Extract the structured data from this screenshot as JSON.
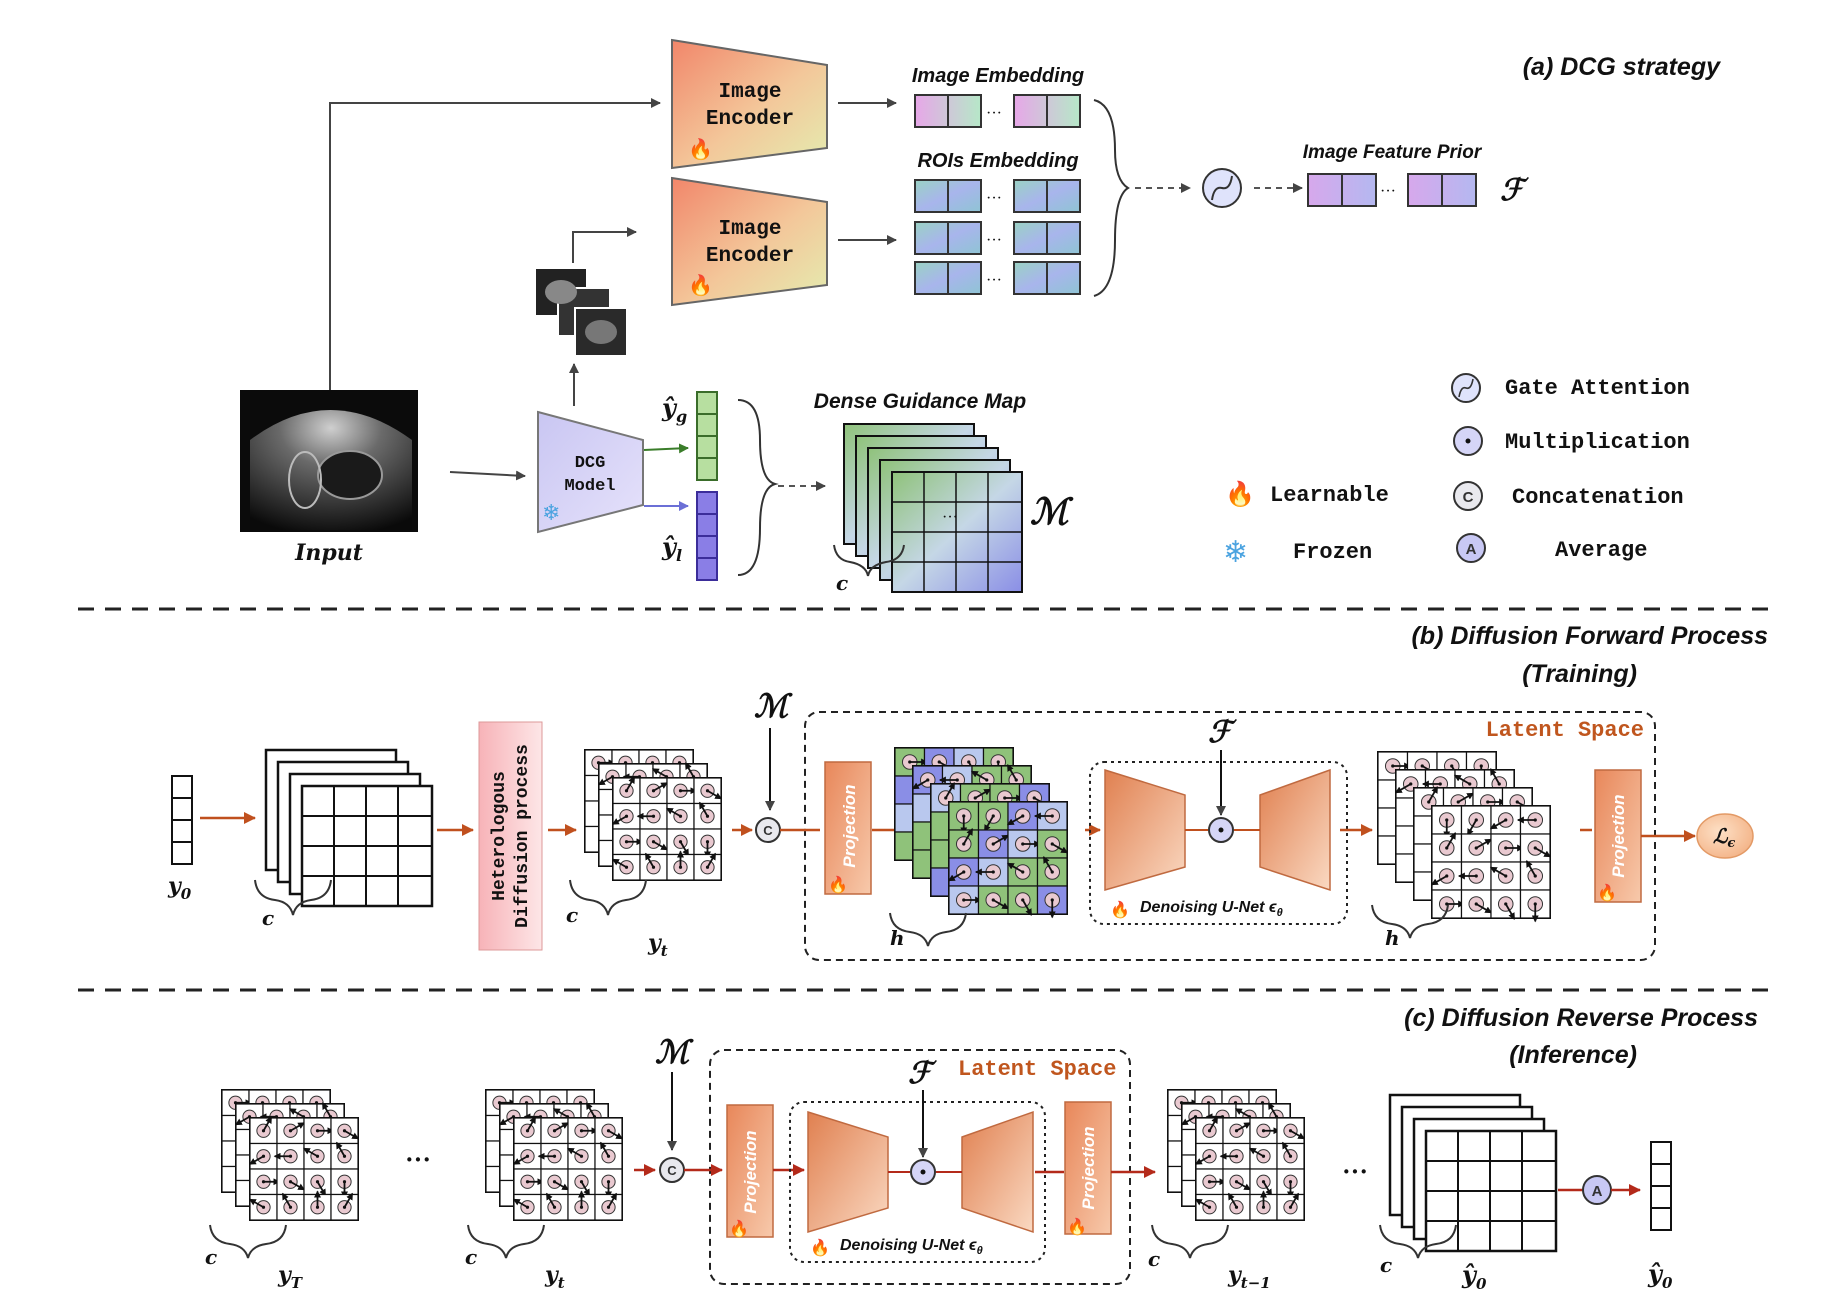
{
  "sections": {
    "a_title": "(a) DCG strategy",
    "b_title_1": "(b) Diffusion Forward Process",
    "b_title_2": "(Training)",
    "c_title_1": "(c) Diffusion Reverse Process",
    "c_title_2": "(Inference)"
  },
  "dcg": {
    "encoder_top": {
      "line1": "Image",
      "line2": "Encoder"
    },
    "encoder_mid": {
      "line1": "Image",
      "line2": "Encoder"
    },
    "dcg_model": {
      "line1": "DCG",
      "line2": "Model"
    },
    "input_label": "Input",
    "image_embedding": "Image Embedding",
    "rois_embedding": "ROIs Embedding",
    "image_feature_prior": "Image Feature Prior",
    "dense_guidance_map": "Dense Guidance Map",
    "F_symbol": "ℱ",
    "M_symbol": "ℳ",
    "yg_label": "ŷ",
    "yg_sub": "g",
    "yl_label": "ŷ",
    "yl_sub": "l",
    "c_label": "c",
    "dots": "···"
  },
  "legend": {
    "gate_attention": "Gate Attention",
    "multiplication": "Multiplication",
    "concatenation": "Concatenation",
    "average": "Average",
    "learnable": "Learnable",
    "frozen": "Frozen",
    "c_glyph": "C",
    "a_glyph": "A"
  },
  "forward": {
    "y0": "y",
    "y0_sub": "0",
    "yt": "y",
    "yt_sub": "t",
    "c_label": "c",
    "h_label": "h",
    "hetero_1": "Heterologous",
    "hetero_2": "Diffusion process",
    "projection": "Projection",
    "latent_space": "Latent Space",
    "unet_label": "Denoising U-Net ϵ",
    "unet_sub": "θ",
    "M_symbol": "ℳ",
    "F_symbol": "ℱ",
    "loss": "ℒ",
    "loss_sub": "ϵ",
    "c_glyph": "C"
  },
  "reverse": {
    "yT": "y",
    "yT_sub": "T",
    "yt": "y",
    "yt_sub": "t",
    "yt1": "y",
    "yt1_sub": "t−1",
    "yhat0": "ŷ",
    "yhat0_sub": "0",
    "yhat0_final": "ŷ",
    "yhat0_final_sub": "0",
    "c_label": "c",
    "projection": "Projection",
    "latent_space": "Latent Space",
    "unet_label": "Denoising U-Net ϵ",
    "unet_sub": "θ",
    "M_symbol": "ℳ",
    "F_symbol": "ℱ",
    "dots": "···",
    "c_glyph": "C",
    "a_glyph": "A"
  },
  "colors": {
    "orange_arrow": "#c0501e",
    "red_arrow": "#b42a1a",
    "latent_text": "#c0561e",
    "green_cell": "#8fc27a",
    "blue_cell": "#8a8ee6"
  }
}
